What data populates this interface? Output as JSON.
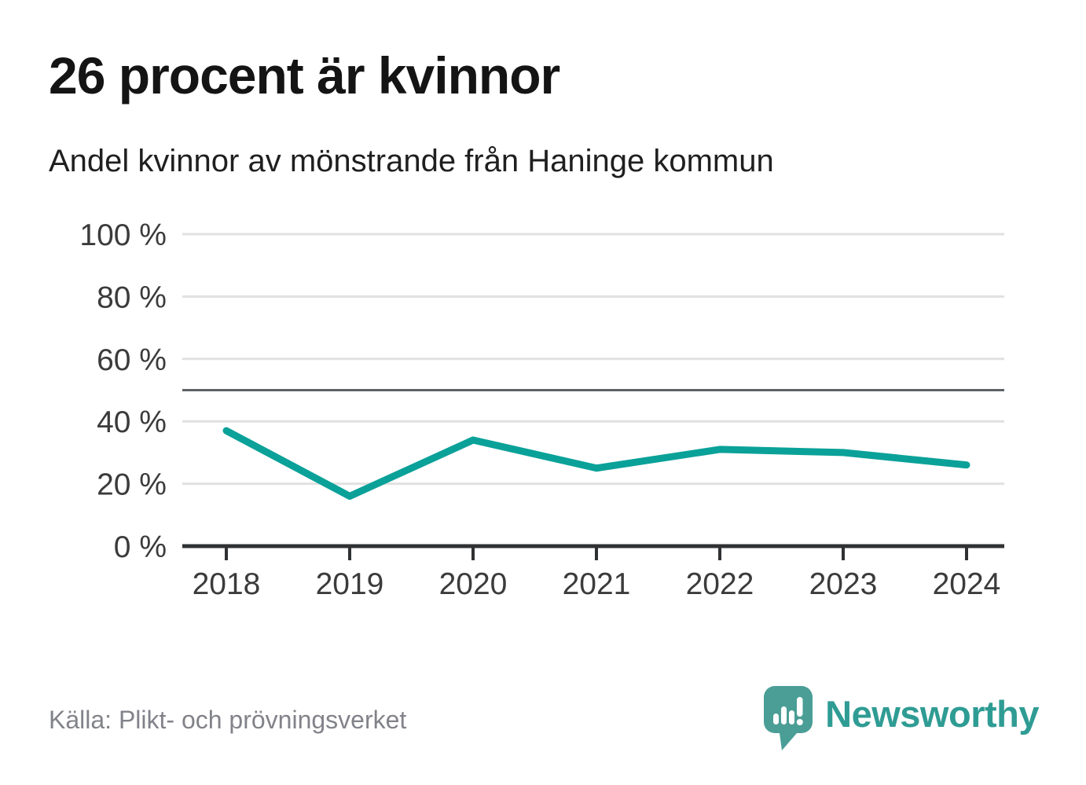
{
  "title": "26 procent är kvinnor",
  "subtitle": "Andel kvinnor av mönstrande från Haninge kommun",
  "source": "Källa: Plikt- och prövningsverket",
  "logo": {
    "text": "Newsworthy"
  },
  "colors": {
    "line": "#0aa199",
    "grid": "#e1e1e1",
    "reference_line": "#5e6266",
    "axis": "#2f3133",
    "label": "#3b3b3b",
    "title": "#141414",
    "subtitle": "#1f1f1f",
    "source": "#82838a",
    "logo_mark": "#4a9e96",
    "logo_text": "#2f9c94"
  },
  "chart_data": {
    "type": "line",
    "title": "26 procent är kvinnor",
    "subtitle": "Andel kvinnor av mönstrande från Haninge kommun",
    "x": [
      2018,
      2019,
      2020,
      2021,
      2022,
      2023,
      2024
    ],
    "series": [
      {
        "name": "Andel kvinnor av mönstrande",
        "values": [
          37,
          16,
          34,
          25,
          31,
          30,
          26
        ]
      }
    ],
    "unit": "%",
    "ylim": [
      0,
      100
    ],
    "yticks": [
      0,
      20,
      40,
      60,
      80,
      100
    ],
    "ytick_format": "{v} %",
    "reference_line": 50,
    "grid": true,
    "legend": false,
    "xlabel": "",
    "ylabel": ""
  }
}
